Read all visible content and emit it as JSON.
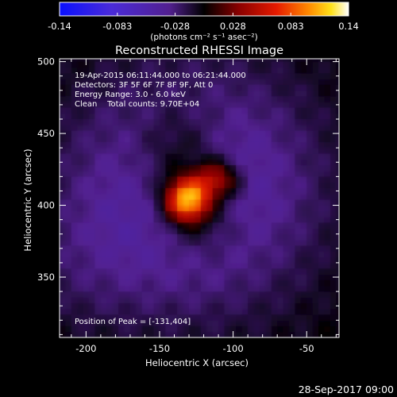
{
  "colorbar": {
    "tick_labels": [
      "-0.14",
      "-0.083",
      "-0.028",
      "0.028",
      "0.083",
      "0.14"
    ],
    "units": "(photons cm⁻² s⁻¹ asec⁻²)",
    "min": -0.14,
    "max": 0.14
  },
  "plot": {
    "title": "Reconstructed RHESSI Image",
    "info_lines": [
      "19-Apr-2015 06:11:44.000 to 06:21:44.000",
      "Detectors: 3F 5F 6F 7F 8F 9F, Att 0",
      "Energy Range: 3.0 - 6.0 keV",
      "Clean    Total counts: 9.70E+04"
    ],
    "peak_label": "Position of Peak = [-131,404]",
    "timestamp": "28-Sep-2017 09:00"
  },
  "chart_data": {
    "type": "heatmap",
    "title": "Reconstructed RHESSI Image",
    "xlabel": "Heliocentric X (arcsec)",
    "ylabel": "Heliocentric Y (arcsec)",
    "xlim": [
      -218,
      -28
    ],
    "ylim": [
      308,
      502
    ],
    "xticks": [
      -200,
      -150,
      -100,
      -50
    ],
    "yticks": [
      350,
      400,
      450,
      500
    ],
    "peak": [
      -131,
      404
    ],
    "zlim": [
      -0.14,
      0.14
    ],
    "colormap": "rhessi (blue-purple-black-red-orange-yellow-white)"
  }
}
